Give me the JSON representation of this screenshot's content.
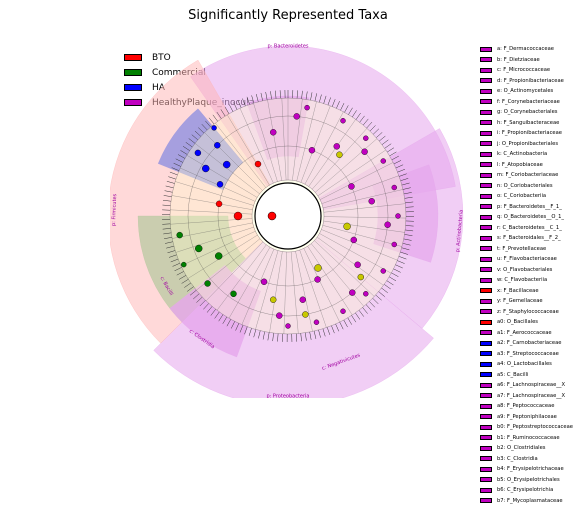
{
  "title": "Significantly Represented Taxa",
  "colors": {
    "BTO": "#ff0000",
    "Commercial": "#008000",
    "HA": "#0000ff",
    "HealthyPlaque_inocula": "#c000c0",
    "ring_BTO": "#ffb3b3",
    "ring_Commercial": "#b8c8a0",
    "ring_HA": "#9090e0",
    "ring_HealthyPlaque": "#e6a6ec",
    "node_bg": "#ffffcc",
    "node_yellow": "#c8c800"
  },
  "legend": [
    {
      "label": "BTO",
      "color": "#ff0000"
    },
    {
      "label": "Commercial",
      "color": "#008000"
    },
    {
      "label": "HA",
      "color": "#0000ff"
    },
    {
      "label": "HealthyPlaque_inocula",
      "color": "#c000c0"
    }
  ],
  "clades": [
    {
      "label": "p: Bacteroidetes",
      "group": "HealthyPlaque_inocula"
    },
    {
      "label": "p: Firmicutes",
      "group": "BTO"
    },
    {
      "label": "p: Actinobacteria",
      "group": "HealthyPlaque_inocula"
    },
    {
      "label": "p: Proteobacteria",
      "group": "HealthyPlaque_inocula"
    },
    {
      "label": "c: Clostridia",
      "group": "HealthyPlaque_inocula"
    },
    {
      "label": "c: Bacilli",
      "group": "Commercial"
    },
    {
      "label": "c: Negativicutes",
      "group": "HealthyPlaque_inocula"
    }
  ],
  "taxa": [
    {
      "code": "a",
      "name": "F_Dermacoccaceae",
      "color": "#c000c0"
    },
    {
      "code": "b",
      "name": "F_Dietziaceae",
      "color": "#c000c0"
    },
    {
      "code": "c",
      "name": "F_Micrococcaceae",
      "color": "#c000c0"
    },
    {
      "code": "d",
      "name": "F_Propionibacteriaceae",
      "color": "#c000c0"
    },
    {
      "code": "e",
      "name": "O_Actinomycetales",
      "color": "#c000c0"
    },
    {
      "code": "f",
      "name": "F_Corynebacteriaceae",
      "color": "#c000c0"
    },
    {
      "code": "g",
      "name": "O_Corynebacteriales",
      "color": "#c000c0"
    },
    {
      "code": "h",
      "name": "F_Sanguibacteraceae",
      "color": "#c000c0"
    },
    {
      "code": "i",
      "name": "F_Propionibacteriaceae",
      "color": "#c000c0"
    },
    {
      "code": "j",
      "name": "O_Propionibacteriales",
      "color": "#c000c0"
    },
    {
      "code": "k",
      "name": "C_Actinobacteria",
      "color": "#c000c0"
    },
    {
      "code": "l",
      "name": "F_Atopobiaceae",
      "color": "#c000c0"
    },
    {
      "code": "m",
      "name": "F_Coriobacteriaceae",
      "color": "#c000c0"
    },
    {
      "code": "n",
      "name": "O_Coriobacteriales",
      "color": "#c000c0"
    },
    {
      "code": "o",
      "name": "C_Coriobacteriia",
      "color": "#c000c0"
    },
    {
      "code": "p",
      "name": "F_Bacteroidetes__F_1_",
      "color": "#c000c0"
    },
    {
      "code": "q",
      "name": "O_Bacteroidetes__O_1_",
      "color": "#c000c0"
    },
    {
      "code": "r",
      "name": "C_Bacteroidetes__C_1_",
      "color": "#c000c0"
    },
    {
      "code": "s",
      "name": "F_Bacteroidales__F_2_",
      "color": "#c000c0"
    },
    {
      "code": "t",
      "name": "F_Prevotellaceae",
      "color": "#c000c0"
    },
    {
      "code": "u",
      "name": "F_Flavobacteriaceae",
      "color": "#c000c0"
    },
    {
      "code": "v",
      "name": "O_Flavobacteriales",
      "color": "#c000c0"
    },
    {
      "code": "w",
      "name": "C_Flavobacteriia",
      "color": "#c000c0"
    },
    {
      "code": "x",
      "name": "F_Bacillaceae",
      "color": "#ff0000"
    },
    {
      "code": "y",
      "name": "F_Gemellaceae",
      "color": "#c000c0"
    },
    {
      "code": "z",
      "name": "F_Staphylococcaceae",
      "color": "#c000c0"
    },
    {
      "code": "a0",
      "name": "O_Bacillales",
      "color": "#ff0000"
    },
    {
      "code": "a1",
      "name": "F_Aerococcaceae",
      "color": "#c000c0"
    },
    {
      "code": "a2",
      "name": "F_Carnobacteriaceae",
      "color": "#0000ff"
    },
    {
      "code": "a3",
      "name": "F_Streptococcaceae",
      "color": "#0000ff"
    },
    {
      "code": "a4",
      "name": "O_Lactobacillales",
      "color": "#0000ff"
    },
    {
      "code": "a5",
      "name": "C_Bacilli",
      "color": "#0000ff"
    },
    {
      "code": "a6",
      "name": "F_Lachnospiraceae__X",
      "color": "#c000c0"
    },
    {
      "code": "a7",
      "name": "F_Lachnospiraceae__X",
      "color": "#c000c0"
    },
    {
      "code": "a8",
      "name": "F_Peptococcaceae",
      "color": "#c000c0"
    },
    {
      "code": "a9",
      "name": "F_Peptoniphilaceae",
      "color": "#c000c0"
    },
    {
      "code": "b0",
      "name": "F_Peptostreptococcaceae",
      "color": "#c000c0"
    },
    {
      "code": "b1",
      "name": "F_Ruminococcaceae",
      "color": "#c000c0"
    },
    {
      "code": "b2",
      "name": "O_Clostridiales",
      "color": "#c000c0"
    },
    {
      "code": "b3",
      "name": "C_Clostridia",
      "color": "#c000c0"
    },
    {
      "code": "b4",
      "name": "F_Erysipelotrichaceae",
      "color": "#c000c0"
    },
    {
      "code": "b5",
      "name": "O_Erysipelotrichales",
      "color": "#c000c0"
    },
    {
      "code": "b6",
      "name": "C_Erysipelotrichia",
      "color": "#c000c0"
    },
    {
      "code": "b7",
      "name": "F_Mycoplasmataceae",
      "color": "#c000c0"
    }
  ]
}
